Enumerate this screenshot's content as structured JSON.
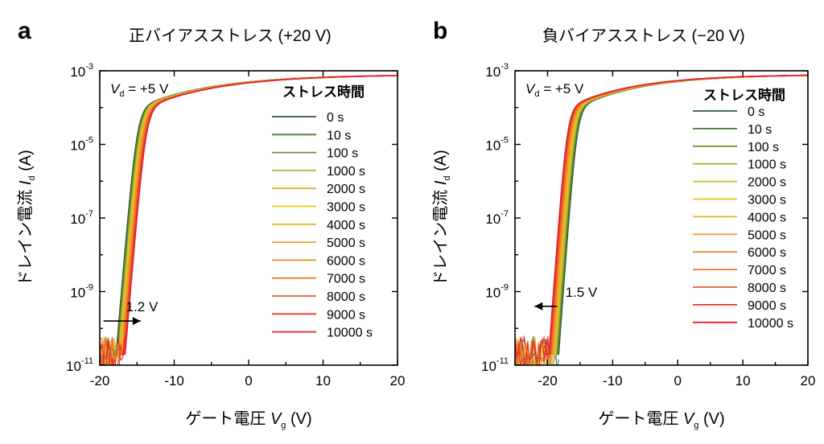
{
  "chart_data": [
    {
      "type": "line",
      "panel_letter": "a",
      "title": "正バイアスストレス (+20 V)",
      "condition_italic": "V",
      "condition_sub": "d",
      "condition_value": " = +5 V",
      "xlabel_prefix": "ゲート電圧 ",
      "xlabel_italic": "V",
      "xlabel_sub": "g",
      "xlabel_unit": " (V)",
      "ylabel_prefix": "ドレイン電流 ",
      "ylabel_italic": "I",
      "ylabel_sub": "d",
      "ylabel_unit": " (A)",
      "xlim": [
        -20,
        20
      ],
      "ylim_exponent": [
        -11,
        -3
      ],
      "y_scale": "log",
      "xticks": [
        -20,
        -10,
        0,
        10,
        20
      ],
      "xtick_labels": [
        "-20",
        "-10",
        "0",
        "10",
        "20"
      ],
      "yticks_exponent": [
        -11,
        -9,
        -7,
        -5,
        -3
      ],
      "ytick_labels": [
        {
          "base": "10",
          "exp": "-11"
        },
        {
          "base": "10",
          "exp": "-9"
        },
        {
          "base": "10",
          "exp": "-7"
        },
        {
          "base": "10",
          "exp": "-5"
        },
        {
          "base": "10",
          "exp": "-3"
        }
      ],
      "legend_title": "ストレス時間",
      "legend_position": "right",
      "annotation": {
        "text": "1.2 V",
        "arrow": "right",
        "from_x": -19.5,
        "to_x": -14.5,
        "log10_y": -9.8
      },
      "onset_x_first": -17.8,
      "onset_x_last": -16.6,
      "noise_floor_log10": -10.4,
      "series": [
        {
          "name": "0 s",
          "color": "#2f5a3a"
        },
        {
          "name": "10 s",
          "color": "#4c7a3a"
        },
        {
          "name": "100 s",
          "color": "#6f8e2c"
        },
        {
          "name": "1000 s",
          "color": "#a9b830"
        },
        {
          "name": "2000 s",
          "color": "#cdbb2a"
        },
        {
          "name": "3000 s",
          "color": "#e3c41e"
        },
        {
          "name": "4000 s",
          "color": "#eab22a"
        },
        {
          "name": "5000 s",
          "color": "#eea12e"
        },
        {
          "name": "6000 s",
          "color": "#ef8c2d"
        },
        {
          "name": "7000 s",
          "color": "#ee7a2c"
        },
        {
          "name": "8000 s",
          "color": "#ec5a28"
        },
        {
          "name": "9000 s",
          "color": "#e9392a"
        },
        {
          "name": "10000 s",
          "color": "#e4202c"
        }
      ]
    },
    {
      "type": "line",
      "panel_letter": "b",
      "title": "負バイアスストレス (−20 V)",
      "condition_italic": "V",
      "condition_sub": "d",
      "condition_value": " = +5 V",
      "xlabel_prefix": "ゲート電圧 ",
      "xlabel_italic": "V",
      "xlabel_sub": "g",
      "xlabel_unit": " (V)",
      "ylabel_prefix": "ドレイン電流 ",
      "ylabel_italic": "I",
      "ylabel_sub": "d",
      "ylabel_unit": " (A)",
      "xlim": [
        -25,
        20
      ],
      "ylim_exponent": [
        -11,
        -3
      ],
      "y_scale": "log",
      "xticks": [
        -20,
        -10,
        0,
        10,
        20
      ],
      "xtick_labels": [
        "-20",
        "-10",
        "0",
        "10",
        "20"
      ],
      "yticks_exponent": [
        -11,
        -9,
        -7,
        -5,
        -3
      ],
      "ytick_labels": [
        {
          "base": "10",
          "exp": "-11"
        },
        {
          "base": "10",
          "exp": "-9"
        },
        {
          "base": "10",
          "exp": "-7"
        },
        {
          "base": "10",
          "exp": "-5"
        },
        {
          "base": "10",
          "exp": "-3"
        }
      ],
      "legend_title": "ストレス時間",
      "legend_position": "right",
      "annotation": {
        "text": "1.5 V",
        "arrow": "left",
        "from_x": -18.5,
        "to_x": -22.0,
        "log10_y": -9.4
      },
      "onset_x_first": -18.3,
      "onset_x_last": -19.8,
      "noise_floor_log10": -10.4,
      "series": [
        {
          "name": "0 s",
          "color": "#2f5a3a"
        },
        {
          "name": "10 s",
          "color": "#4c7a3a"
        },
        {
          "name": "100 s",
          "color": "#6f8e2c"
        },
        {
          "name": "1000 s",
          "color": "#a9b830"
        },
        {
          "name": "2000 s",
          "color": "#cdbb2a"
        },
        {
          "name": "3000 s",
          "color": "#e3c41e"
        },
        {
          "name": "4000 s",
          "color": "#eab22a"
        },
        {
          "name": "5000 s",
          "color": "#eea12e"
        },
        {
          "name": "6000 s",
          "color": "#ef8c2d"
        },
        {
          "name": "7000 s",
          "color": "#ee7a2c"
        },
        {
          "name": "8000 s",
          "color": "#ec5a28"
        },
        {
          "name": "9000 s",
          "color": "#e9392a"
        },
        {
          "name": "10000 s",
          "color": "#e4202c"
        }
      ]
    }
  ]
}
